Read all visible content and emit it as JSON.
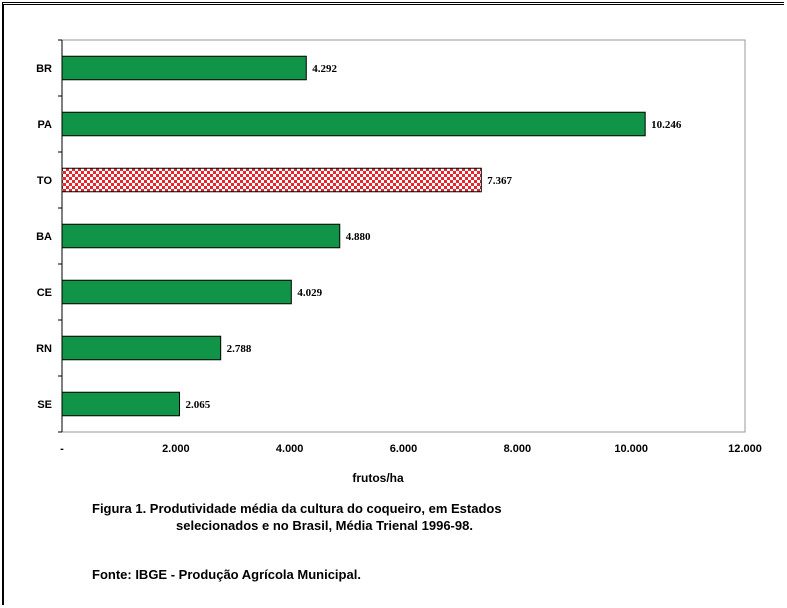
{
  "chart_data": {
    "type": "bar",
    "orientation": "horizontal",
    "categories": [
      "BR",
      "PA",
      "TO",
      "BA",
      "CE",
      "RN",
      "SE"
    ],
    "values": [
      4292,
      10246,
      7367,
      4880,
      4029,
      2788,
      2065
    ],
    "value_labels": [
      "4.292",
      "10.246",
      "7.367",
      "4.880",
      "4.029",
      "2.788",
      "2.065"
    ],
    "highlight": "TO",
    "xlabel": "frutos/ha",
    "xlim": [
      0,
      12000
    ],
    "xticks": [
      0,
      2000,
      4000,
      6000,
      8000,
      10000,
      12000
    ],
    "xtick_labels": [
      "-",
      "2.000",
      "4.000",
      "6.000",
      "8.000",
      "10.000",
      "12.000"
    ],
    "colors": {
      "bar": "#109448",
      "highlight": "#e8242c",
      "bar_stroke": "#000000"
    },
    "grid": false
  },
  "caption": {
    "line1": "Figura 1. Produtividade média da cultura do coqueiro, em Estados",
    "line2": "selecionados e no Brasil, Média Trienal 1996-98."
  },
  "source": "Fonte: IBGE - Produção Agrícola Municipal."
}
